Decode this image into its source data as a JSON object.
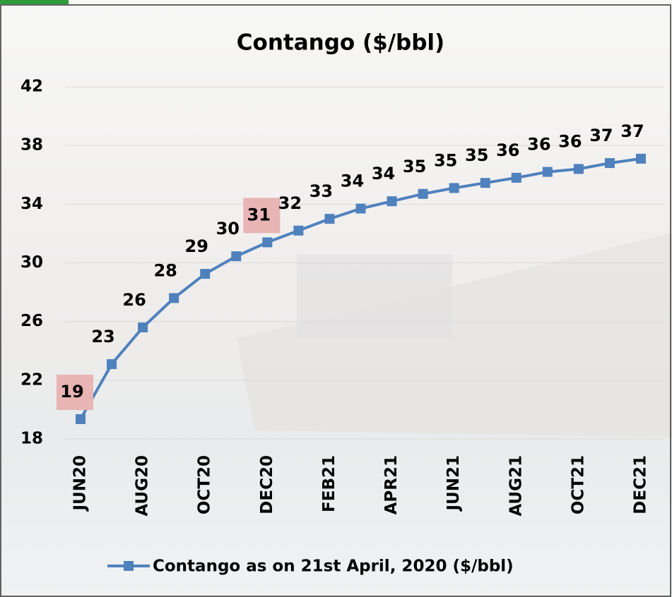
{
  "chart_data": {
    "type": "line",
    "title": "Contango ($/bbl)",
    "categories": [
      "JUN20",
      null,
      "AUG20",
      null,
      "OCT20",
      null,
      "DEC20",
      null,
      "FEB21",
      null,
      "APR21",
      null,
      "JUN21",
      null,
      "AUG21",
      null,
      "OCT21",
      null,
      "DEC21"
    ],
    "series": [
      {
        "name": "Contango as on 21st April, 2020 ($/bbl)",
        "color": "#4f81bd",
        "values": [
          19.35,
          23.1,
          25.6,
          27.6,
          29.25,
          30.45,
          31.4,
          32.2,
          33.0,
          33.7,
          34.2,
          34.7,
          35.1,
          35.45,
          35.8,
          36.2,
          36.4,
          36.8,
          37.1
        ],
        "value_labels": [
          "19",
          "23",
          "26",
          "28",
          "29",
          "30",
          "31",
          "32",
          "33",
          "34",
          "34",
          "35",
          "35",
          "35",
          "36",
          "36",
          "36",
          "37",
          "37"
        ],
        "highlighted": [
          0,
          6
        ],
        "highlight_color": "#e8b4b4"
      }
    ],
    "ylim": [
      18,
      42
    ],
    "yticks": [
      18,
      22,
      26,
      30,
      34,
      38,
      42
    ],
    "grid": true,
    "legend": "bottom"
  }
}
